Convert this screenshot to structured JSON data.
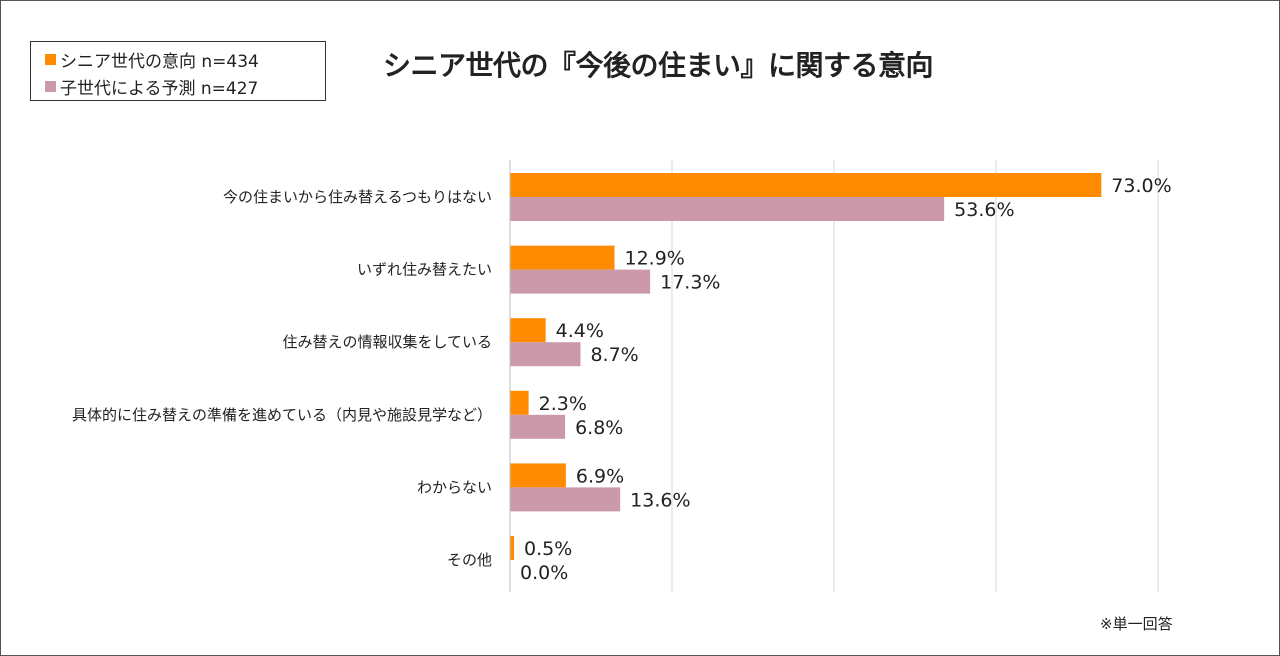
{
  "chart_data": {
    "type": "bar",
    "orientation": "horizontal",
    "title": "シニア世代の『今後の住まい』に関する意向",
    "categories": [
      "今の住まいから住み替えるつもりはない",
      "いずれ住み替えたい",
      "住み替えの情報収集をしている",
      "具体的に住み替えの準備を進めている（内見や施設見学など）",
      "わからない",
      "その他"
    ],
    "series": [
      {
        "name": "シニア世代の意向 n=434",
        "color": "#FF8C00",
        "values": [
          73.0,
          12.9,
          4.4,
          2.3,
          6.9,
          0.5
        ],
        "labels": [
          "73.0%",
          "12.9%",
          "4.4%",
          "2.3%",
          "6.9%",
          "0.5%"
        ]
      },
      {
        "name": "子世代による予測 n=427",
        "color": "#CC99AA",
        "values": [
          53.6,
          17.3,
          8.7,
          6.8,
          13.6,
          0.0
        ],
        "labels": [
          "53.6%",
          "17.3%",
          "8.7%",
          "6.8%",
          "13.6%",
          "0.0%"
        ]
      }
    ],
    "xlim": [
      0,
      80
    ],
    "grid": true,
    "legend_position": "top-left",
    "xlabel": "",
    "ylabel": ""
  },
  "note": "※単一回答"
}
